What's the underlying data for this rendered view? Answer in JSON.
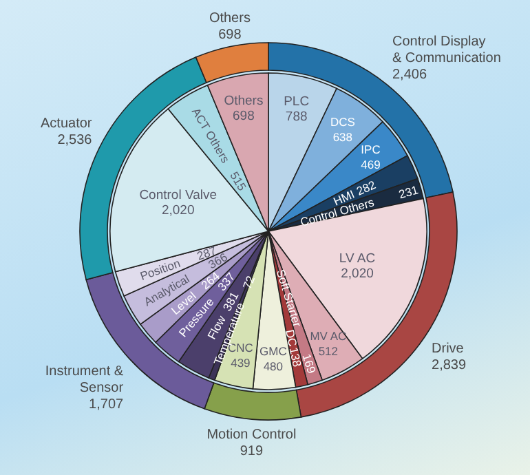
{
  "chart_data": [
    {
      "type": "donut",
      "categories": [
        "Control Display & Communication",
        "Drive",
        "Motion Control",
        "Instrument & Sensor",
        "Actuator",
        "Others"
      ],
      "values": [
        2406,
        2839,
        919,
        1707,
        2536,
        698
      ],
      "value_labels": [
        "2,406",
        "2,839",
        "919",
        "1,707",
        "2,536",
        "698"
      ],
      "colors": [
        "#2372a8",
        "#a94643",
        "#86a04b",
        "#6b5b9a",
        "#1f9aab",
        "#e07f3e"
      ]
    },
    {
      "type": "pie",
      "categories": [
        "PLC",
        "DCS",
        "IPC",
        "HMI",
        "Control Others",
        "LV AC",
        "MV AC",
        "Soft Starter",
        "DC",
        "GMC",
        "CNC",
        "Temperature",
        "Flow",
        "Pressure",
        "Level",
        "Analytical",
        "Position",
        "Control Valve",
        "ACT Others",
        "Others"
      ],
      "values": [
        788,
        638,
        469,
        282,
        231,
        2020,
        512,
        169,
        138,
        480,
        439,
        72,
        381,
        337,
        264,
        366,
        287,
        2020,
        515,
        698
      ],
      "value_labels": [
        "788",
        "638",
        "469",
        "282",
        "231",
        "2,020",
        "512",
        "169",
        "138",
        "480",
        "439",
        "72",
        "381",
        "337",
        "264",
        "366",
        "287",
        "2,020",
        "515",
        "698"
      ],
      "colors": [
        "#b9d5ea",
        "#7fb0dc",
        "#3a88c8",
        "#1a3f63",
        "#1a2b40",
        "#f0d8dc",
        "#deadb5",
        "#c47a85",
        "#a33a3a",
        "#eef0dc",
        "#d6e2b4",
        "#3c3357",
        "#4b3f6b",
        "#6f5f9c",
        "#a99cc9",
        "#c5bddd",
        "#e0dcec",
        "#d4ebf1",
        "#a9dbe6",
        "#d9a7b0"
      ]
    }
  ]
}
